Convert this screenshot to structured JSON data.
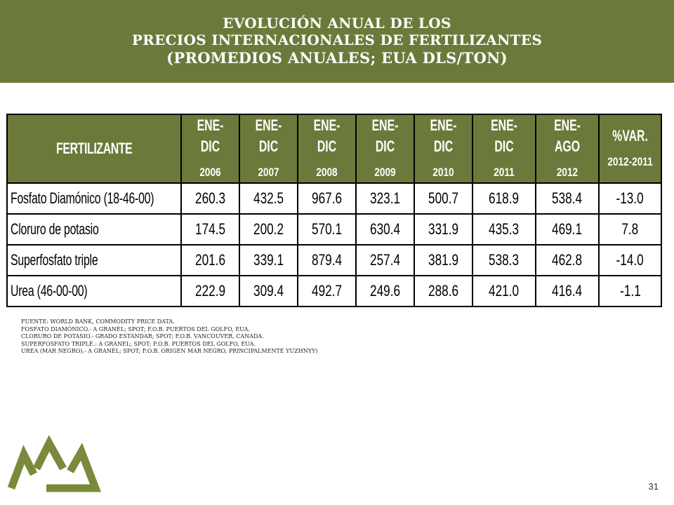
{
  "header": {
    "line1": "EVOLUCIÓN ANUAL DE LOS",
    "line2": "PRECIOS INTERNACIONALES DE FERTILIZANTES",
    "line3": "(PROMEDIOS ANUALES; EUA DLS/TON)"
  },
  "table": {
    "label_header": "FERTILIZANTE",
    "columns": [
      {
        "top": "ENE-DIC",
        "year": "2006"
      },
      {
        "top": "ENE-DIC",
        "year": "2007"
      },
      {
        "top": "ENE-DIC",
        "year": "2008"
      },
      {
        "top": "ENE-DIC",
        "year": "2009"
      },
      {
        "top": "ENE-DIC",
        "year": "2010"
      },
      {
        "top": "ENE-DIC",
        "year": "2011"
      },
      {
        "top": "ENE-AGO",
        "year": "2012"
      },
      {
        "top": "%VAR.",
        "year": "2012-2011"
      }
    ],
    "rows": [
      {
        "name": "Fosfato Diamónico (18-46-00)",
        "values": [
          "260.3",
          "432.5",
          "967.6",
          "323.1",
          "500.7",
          "618.9",
          "538.4",
          "-13.0"
        ]
      },
      {
        "name": "Cloruro de potasio",
        "values": [
          "174.5",
          "200.2",
          "570.1",
          "630.4",
          "331.9",
          "435.3",
          "469.1",
          "7.8"
        ]
      },
      {
        "name": "Superfosfato triple",
        "values": [
          "201.6",
          "339.1",
          "879.4",
          "257.4",
          "381.9",
          "538.3",
          "462.8",
          "-14.0"
        ]
      },
      {
        "name": "Urea (46-00-00)",
        "values": [
          "222.9",
          "309.4",
          "492.7",
          "249.6",
          "288.6",
          "421.0",
          "416.4",
          "-1.1"
        ]
      }
    ]
  },
  "notes": [
    "FUENTE: WORLD BANK, COMMODITY PRICE DATA.",
    "FOSFATO DIAMÓNICO.- A GRANEL; SPOT; F.O.B. PUERTOS DEL GOLFO, EUA.",
    "CLORURO DE POTASIO.- GRADO ESTÁNDAR; SPOT; F.O.B. VANCOUVER, CANADA.",
    "SUPERFOSFATO TRIPLE.- A GRANEL; SPOT; F.O.B. PUERTOS DEL GOLFO, EUA.",
    "UREA (MAR NEGRO).- A GRANEL; SPOT; F.O.B. ORIGEN MAR NEGRO, PRINCIPALMENTE YUZHNYY)"
  ],
  "page_number": "31",
  "colors": {
    "header_bg": "#6b7a3a",
    "logo_green": "#7a8a3c"
  },
  "logo": {
    "icon": "three-mountains-logo-icon"
  }
}
